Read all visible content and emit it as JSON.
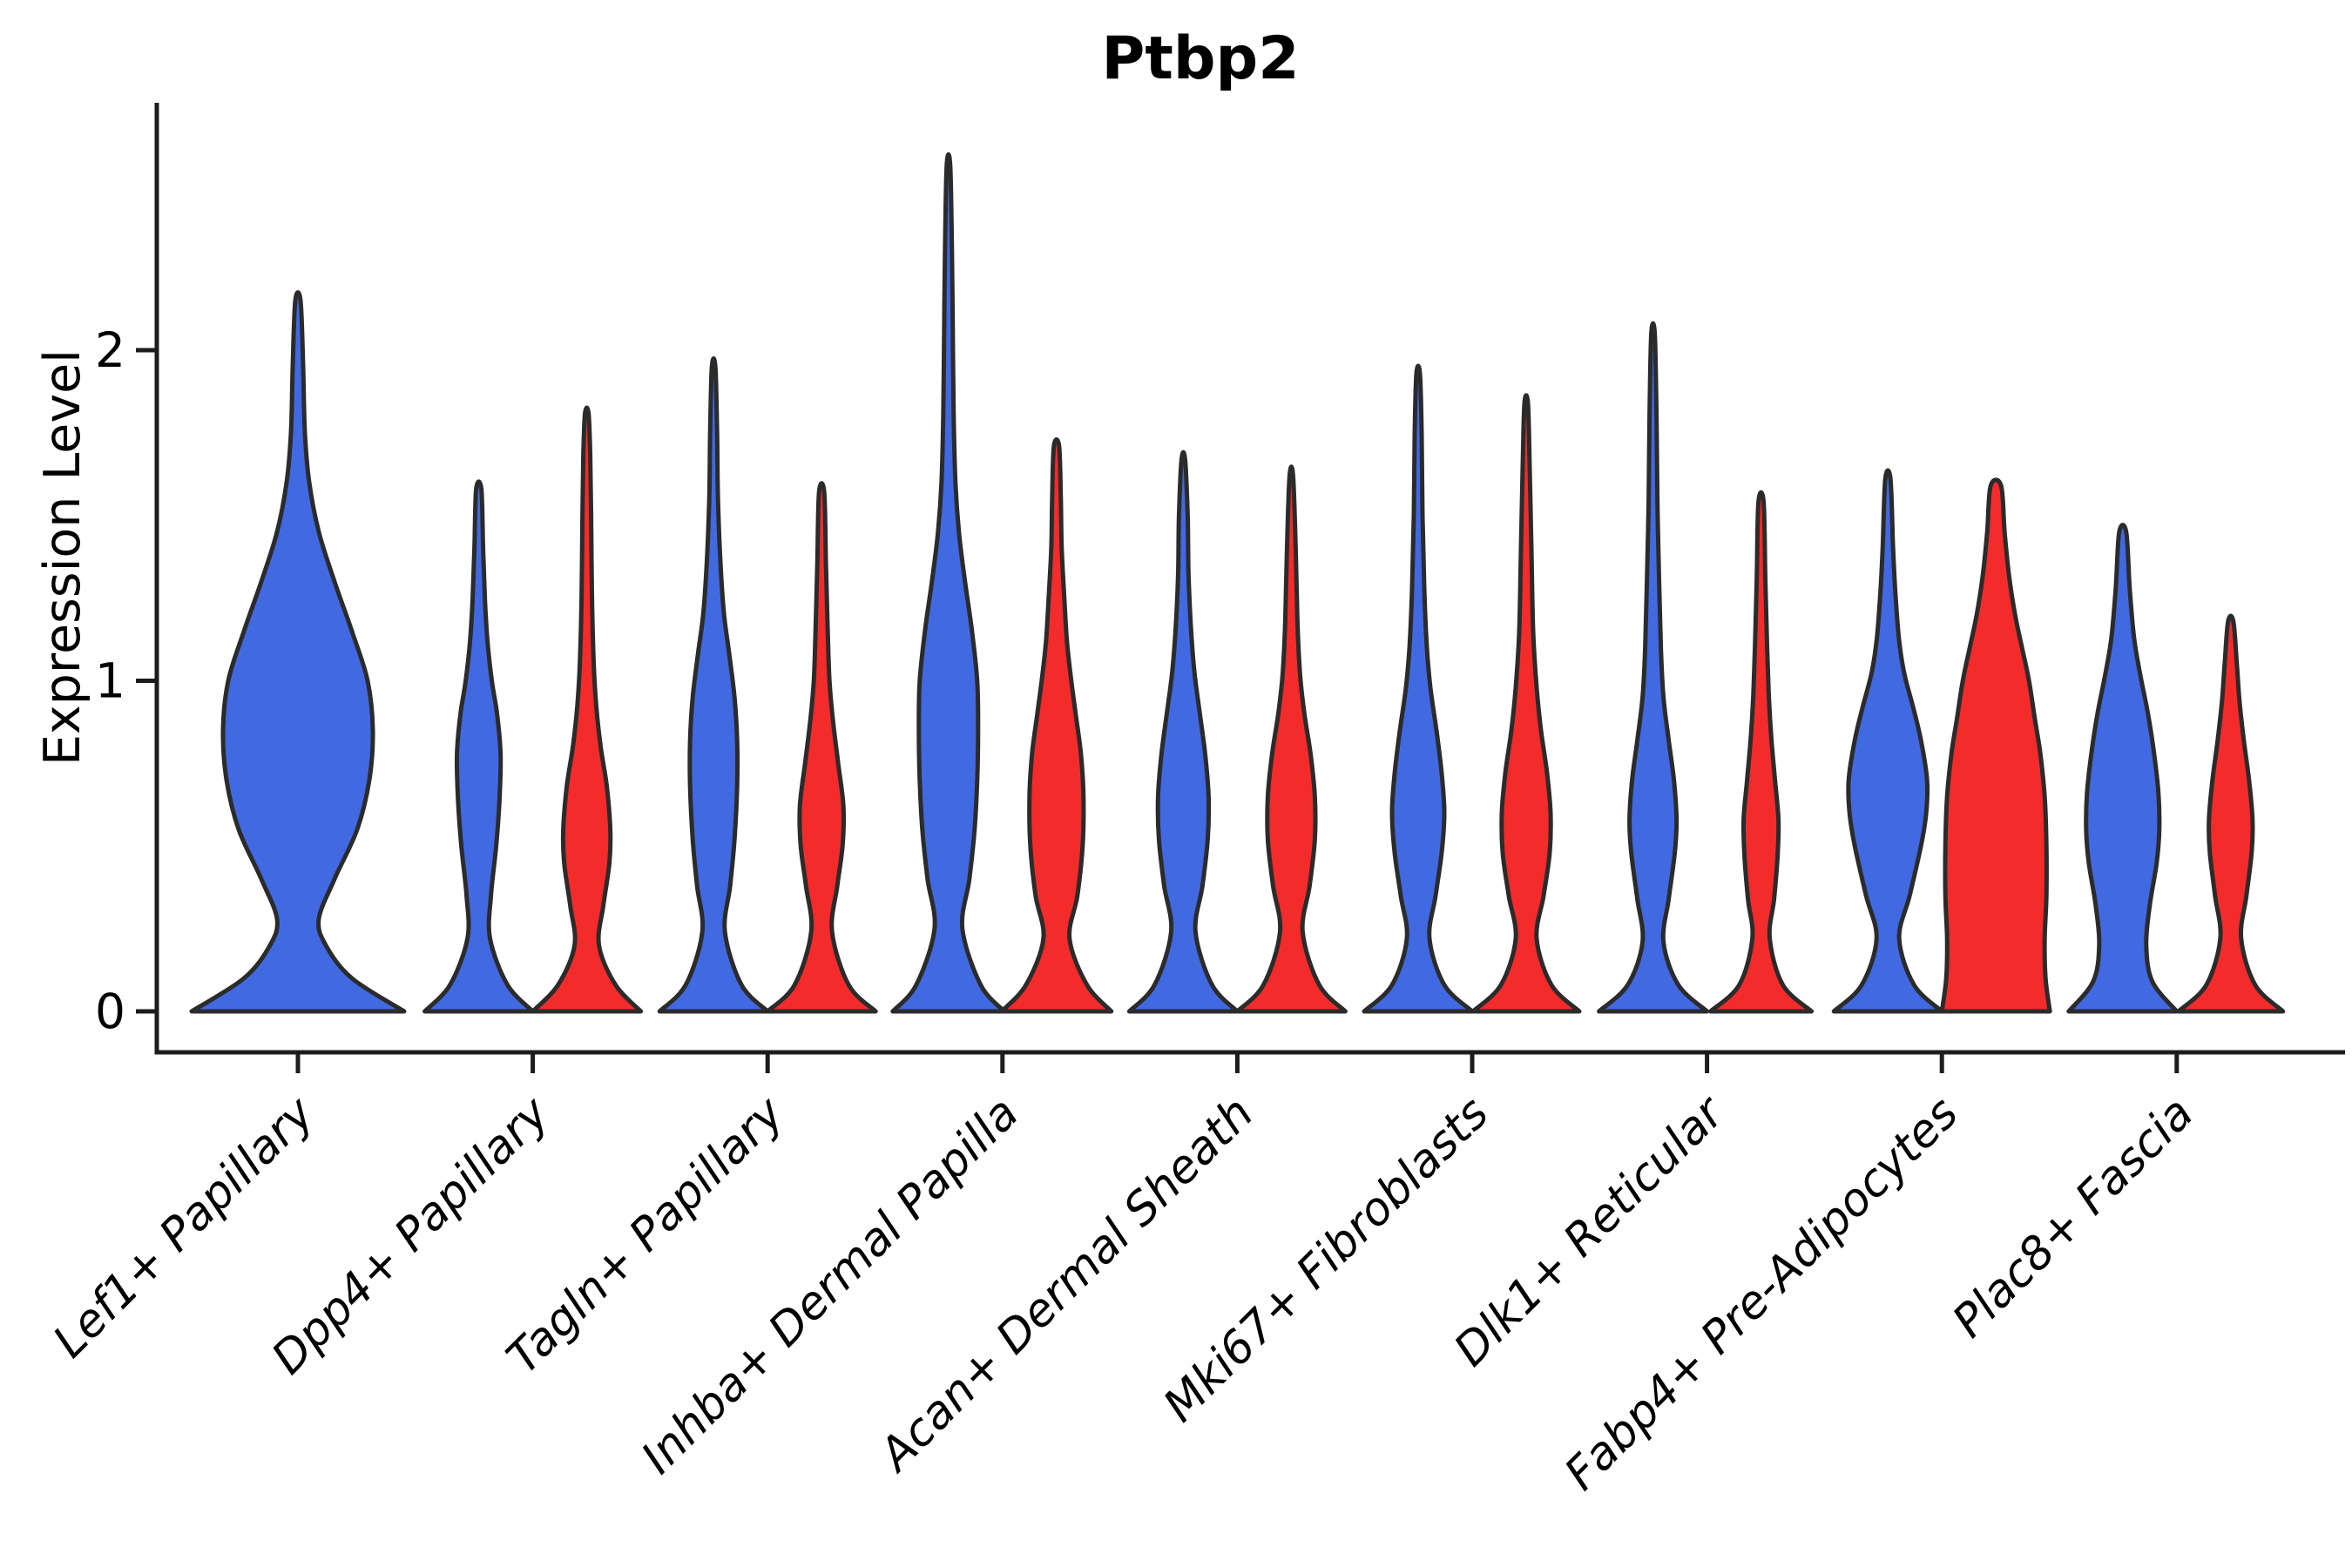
{
  "title": "Ptbp2",
  "y_axis": {
    "label": "Expression Level",
    "ticks": [
      "0",
      "1",
      "2"
    ]
  },
  "categories": [
    "Lef1+ Papillary",
    "Dpp4+ Papillary",
    "Tagln+ Papillary",
    "Inhba+ Dermal Papilla",
    "Acan+ Dermal Sheath",
    "Mki67+ Fibroblasts",
    "Dlk1+ Reticular",
    "Fabp4+ Pre-Adipocytes",
    "Plac8+ Fascia"
  ],
  "colors": {
    "violin_blue": "#4169E1",
    "violin_red": "#F32B2B",
    "outline": "#2B2B2B",
    "axis": "#1C1C1C",
    "text": "#000000",
    "background": "#FFFFFF"
  },
  "chart_data": {
    "type": "violin",
    "title": "Ptbp2",
    "ylabel": "Expression Level",
    "xlabel": "",
    "ylim": [
      -0.12,
      2.75
    ],
    "yticks": [
      0,
      1,
      2
    ],
    "grid": false,
    "legend": "none",
    "split_colors": {
      "blue": "#4169E1",
      "red": "#F32B2B"
    },
    "categories": [
      "Lef1+ Papillary",
      "Dpp4+ Papillary",
      "Tagln+ Papillary",
      "Inhba+ Dermal Papilla",
      "Acan+ Dermal Sheath",
      "Mki67+ Fibroblasts",
      "Dlk1+ Reticular",
      "Fabp4+ Pre-Adipocytes",
      "Plac8+ Fascia"
    ],
    "profile_format": "[expression_value, half_width_px]",
    "violins": [
      {
        "category": "Lef1+ Papillary",
        "split": "blue",
        "position": "center",
        "max_value": 2.15,
        "profile": [
          [
            0,
            122
          ],
          [
            0.1,
            62
          ],
          [
            0.2,
            32
          ],
          [
            0.28,
            24
          ],
          [
            0.4,
            42
          ],
          [
            0.55,
            68
          ],
          [
            0.7,
            82
          ],
          [
            0.85,
            86
          ],
          [
            1.0,
            80
          ],
          [
            1.15,
            62
          ],
          [
            1.3,
            42
          ],
          [
            1.45,
            24
          ],
          [
            1.6,
            13
          ],
          [
            1.75,
            8
          ],
          [
            1.95,
            6
          ],
          [
            2.15,
            3
          ]
        ]
      },
      {
        "category": "Dpp4+ Papillary",
        "split": "blue",
        "position": "left",
        "max_value": 1.58,
        "profile": [
          [
            0,
            62
          ],
          [
            0.08,
            33
          ],
          [
            0.22,
            13
          ],
          [
            0.35,
            14
          ],
          [
            0.5,
            20
          ],
          [
            0.65,
            24
          ],
          [
            0.78,
            25
          ],
          [
            0.9,
            21
          ],
          [
            1.0,
            15
          ],
          [
            1.12,
            10
          ],
          [
            1.25,
            7
          ],
          [
            1.4,
            5
          ],
          [
            1.58,
            3
          ]
        ]
      },
      {
        "category": "Dpp4+ Papillary",
        "split": "red",
        "position": "right",
        "max_value": 1.81,
        "profile": [
          [
            0,
            62
          ],
          [
            0.08,
            33
          ],
          [
            0.2,
            14
          ],
          [
            0.32,
            19
          ],
          [
            0.45,
            26
          ],
          [
            0.55,
            27
          ],
          [
            0.68,
            23
          ],
          [
            0.8,
            16
          ],
          [
            0.92,
            11
          ],
          [
            1.05,
            8
          ],
          [
            1.25,
            6
          ],
          [
            1.5,
            5
          ],
          [
            1.68,
            4
          ],
          [
            1.81,
            2
          ]
        ]
      },
      {
        "category": "Tagln+ Papillary",
        "split": "blue",
        "position": "left",
        "max_value": 1.95,
        "profile": [
          [
            0,
            62
          ],
          [
            0.08,
            32
          ],
          [
            0.24,
            13
          ],
          [
            0.38,
            19
          ],
          [
            0.52,
            24
          ],
          [
            0.68,
            27
          ],
          [
            0.82,
            27
          ],
          [
            0.95,
            24
          ],
          [
            1.08,
            18
          ],
          [
            1.2,
            12
          ],
          [
            1.35,
            8
          ],
          [
            1.55,
            5
          ],
          [
            1.75,
            4
          ],
          [
            1.95,
            2
          ]
        ]
      },
      {
        "category": "Tagln+ Papillary",
        "split": "red",
        "position": "right",
        "max_value": 1.57,
        "profile": [
          [
            0,
            62
          ],
          [
            0.08,
            31
          ],
          [
            0.24,
            12
          ],
          [
            0.38,
            18
          ],
          [
            0.5,
            24
          ],
          [
            0.62,
            25
          ],
          [
            0.75,
            19
          ],
          [
            0.88,
            13
          ],
          [
            1.0,
            9
          ],
          [
            1.15,
            7
          ],
          [
            1.35,
            5
          ],
          [
            1.57,
            3
          ]
        ]
      },
      {
        "category": "Inhba+ Dermal Papilla",
        "split": "blue",
        "position": "left",
        "max_value": 2.56,
        "profile": [
          [
            0,
            64
          ],
          [
            0.08,
            37
          ],
          [
            0.25,
            16
          ],
          [
            0.4,
            24
          ],
          [
            0.55,
            30
          ],
          [
            0.7,
            33
          ],
          [
            0.85,
            34
          ],
          [
            1.0,
            33
          ],
          [
            1.15,
            27
          ],
          [
            1.3,
            19
          ],
          [
            1.45,
            12
          ],
          [
            1.6,
            8
          ],
          [
            1.8,
            6
          ],
          [
            2.05,
            5
          ],
          [
            2.3,
            4
          ],
          [
            2.56,
            2
          ]
        ]
      },
      {
        "category": "Inhba+ Dermal Papilla",
        "split": "red",
        "position": "right",
        "max_value": 1.71,
        "profile": [
          [
            0,
            63
          ],
          [
            0.08,
            35
          ],
          [
            0.22,
            15
          ],
          [
            0.35,
            24
          ],
          [
            0.5,
            30
          ],
          [
            0.65,
            31
          ],
          [
            0.78,
            28
          ],
          [
            0.9,
            22
          ],
          [
            1.0,
            17
          ],
          [
            1.12,
            12
          ],
          [
            1.25,
            9
          ],
          [
            1.4,
            6
          ],
          [
            1.55,
            5
          ],
          [
            1.71,
            3
          ]
        ]
      },
      {
        "category": "Acan+ Dermal Sheath",
        "split": "blue",
        "position": "left",
        "max_value": 1.67,
        "profile": [
          [
            0,
            62
          ],
          [
            0.08,
            33
          ],
          [
            0.24,
            14
          ],
          [
            0.38,
            22
          ],
          [
            0.52,
            28
          ],
          [
            0.65,
            29
          ],
          [
            0.78,
            25
          ],
          [
            0.9,
            19
          ],
          [
            1.02,
            13
          ],
          [
            1.15,
            9
          ],
          [
            1.32,
            6
          ],
          [
            1.5,
            5
          ],
          [
            1.67,
            2
          ]
        ]
      },
      {
        "category": "Acan+ Dermal Sheath",
        "split": "red",
        "position": "right",
        "max_value": 1.62,
        "profile": [
          [
            0,
            62
          ],
          [
            0.08,
            32
          ],
          [
            0.24,
            13
          ],
          [
            0.38,
            21
          ],
          [
            0.52,
            27
          ],
          [
            0.65,
            27
          ],
          [
            0.78,
            22
          ],
          [
            0.9,
            15
          ],
          [
            1.02,
            10
          ],
          [
            1.18,
            7
          ],
          [
            1.4,
            5
          ],
          [
            1.62,
            2
          ]
        ]
      },
      {
        "category": "Mki67+ Fibroblasts",
        "split": "blue",
        "position": "left",
        "max_value": 1.93,
        "profile": [
          [
            0,
            62
          ],
          [
            0.08,
            30
          ],
          [
            0.22,
            13
          ],
          [
            0.35,
            20
          ],
          [
            0.48,
            27
          ],
          [
            0.6,
            30
          ],
          [
            0.72,
            27
          ],
          [
            0.85,
            21
          ],
          [
            0.98,
            14
          ],
          [
            1.1,
            10
          ],
          [
            1.28,
            7
          ],
          [
            1.5,
            5
          ],
          [
            1.75,
            4
          ],
          [
            1.93,
            2
          ]
        ]
      },
      {
        "category": "Mki67+ Fibroblasts",
        "split": "red",
        "position": "right",
        "max_value": 1.84,
        "profile": [
          [
            0,
            61
          ],
          [
            0.08,
            29
          ],
          [
            0.22,
            12
          ],
          [
            0.35,
            20
          ],
          [
            0.48,
            27
          ],
          [
            0.6,
            28
          ],
          [
            0.72,
            24
          ],
          [
            0.85,
            17
          ],
          [
            0.98,
            12
          ],
          [
            1.15,
            8
          ],
          [
            1.4,
            6
          ],
          [
            1.65,
            4
          ],
          [
            1.84,
            2
          ]
        ]
      },
      {
        "category": "Dlk1+ Reticular",
        "split": "blue",
        "position": "left",
        "max_value": 2.05,
        "profile": [
          [
            0,
            62
          ],
          [
            0.08,
            29
          ],
          [
            0.21,
            12
          ],
          [
            0.34,
            18
          ],
          [
            0.48,
            25
          ],
          [
            0.58,
            27
          ],
          [
            0.7,
            24
          ],
          [
            0.82,
            18
          ],
          [
            0.95,
            12
          ],
          [
            1.1,
            9
          ],
          [
            1.3,
            7
          ],
          [
            1.55,
            5
          ],
          [
            1.8,
            4
          ],
          [
            2.05,
            2
          ]
        ]
      },
      {
        "category": "Dlk1+ Reticular",
        "split": "red",
        "position": "right",
        "max_value": 1.54,
        "profile": [
          [
            0,
            58
          ],
          [
            0.08,
            25
          ],
          [
            0.22,
            10
          ],
          [
            0.34,
            15
          ],
          [
            0.47,
            19
          ],
          [
            0.58,
            20
          ],
          [
            0.7,
            16
          ],
          [
            0.82,
            12
          ],
          [
            0.95,
            9
          ],
          [
            1.1,
            7
          ],
          [
            1.3,
            5
          ],
          [
            1.54,
            3
          ]
        ]
      },
      {
        "category": "Fabp4+ Pre-Adipocytes",
        "split": "blue",
        "position": "left",
        "max_value": 1.61,
        "profile": [
          [
            0,
            62
          ],
          [
            0.08,
            30
          ],
          [
            0.22,
            13
          ],
          [
            0.35,
            25
          ],
          [
            0.5,
            38
          ],
          [
            0.6,
            44
          ],
          [
            0.7,
            45
          ],
          [
            0.82,
            38
          ],
          [
            0.92,
            29
          ],
          [
            1.02,
            19
          ],
          [
            1.12,
            13
          ],
          [
            1.25,
            9
          ],
          [
            1.4,
            6
          ],
          [
            1.61,
            3
          ]
        ]
      },
      {
        "category": "Fabp4+ Pre-Adipocytes",
        "split": "red",
        "position": "right",
        "max_value": 1.59,
        "profile": [
          [
            0,
            62
          ],
          [
            0.1,
            57
          ],
          [
            0.22,
            56
          ],
          [
            0.35,
            58
          ],
          [
            0.5,
            58
          ],
          [
            0.65,
            56
          ],
          [
            0.78,
            51
          ],
          [
            0.88,
            45
          ],
          [
            1.0,
            38
          ],
          [
            1.1,
            30
          ],
          [
            1.2,
            22
          ],
          [
            1.32,
            15
          ],
          [
            1.45,
            10
          ],
          [
            1.59,
            6
          ]
        ]
      },
      {
        "category": "Plac8+ Fascia",
        "split": "blue",
        "position": "left",
        "max_value": 1.45,
        "profile": [
          [
            0,
            62
          ],
          [
            0.09,
            34
          ],
          [
            0.2,
            27
          ],
          [
            0.32,
            31
          ],
          [
            0.45,
            39
          ],
          [
            0.55,
            42
          ],
          [
            0.66,
            41
          ],
          [
            0.78,
            36
          ],
          [
            0.9,
            29
          ],
          [
            1.02,
            20
          ],
          [
            1.13,
            13
          ],
          [
            1.28,
            8
          ],
          [
            1.45,
            4
          ]
        ]
      },
      {
        "category": "Plac8+ Fascia",
        "split": "red",
        "position": "right",
        "max_value": 1.18,
        "profile": [
          [
            0,
            60
          ],
          [
            0.08,
            28
          ],
          [
            0.22,
            12
          ],
          [
            0.35,
            18
          ],
          [
            0.48,
            24
          ],
          [
            0.58,
            25
          ],
          [
            0.7,
            21
          ],
          [
            0.82,
            15
          ],
          [
            0.94,
            10
          ],
          [
            1.05,
            7
          ],
          [
            1.18,
            3
          ]
        ]
      }
    ]
  }
}
